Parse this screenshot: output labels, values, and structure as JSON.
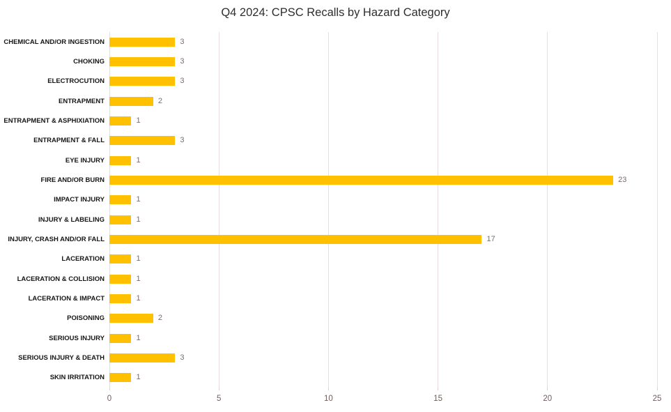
{
  "chart_data": {
    "type": "bar",
    "orientation": "horizontal",
    "title": "Q4 2024: CPSC Recalls by Hazard Category",
    "xlabel": "",
    "ylabel": "",
    "categories": [
      "CHEMICAL AND/OR INGESTION",
      "CHOKING",
      "ELECTROCUTION",
      "ENTRAPMENT",
      "ENTRAPMENT & ASPHIXIATION",
      "ENTRAPMENT & FALL",
      "EYE INJURY",
      "FIRE AND/OR BURN",
      "IMPACT INJURY",
      "INJURY & LABELING",
      "INJURY, CRASH AND/OR FALL",
      "LACERATION",
      "LACERATION & COLLISION",
      "LACERATION & IMPACT",
      "POISONING",
      "SERIOUS INJURY",
      "SERIOUS INJURY & DEATH",
      "SKIN IRRITATION"
    ],
    "values": [
      3,
      3,
      3,
      2,
      1,
      3,
      1,
      23,
      1,
      1,
      17,
      1,
      1,
      1,
      2,
      1,
      3,
      1
    ],
    "data_labels": [
      3,
      3,
      3,
      2,
      1,
      3,
      1,
      23,
      1,
      1,
      17,
      1,
      1,
      1,
      2,
      1,
      3,
      1
    ],
    "xlim": [
      0,
      25
    ],
    "x_ticks": [
      0,
      5,
      10,
      15,
      20,
      25
    ],
    "grid": "vertical-major",
    "legend": "none",
    "colors": {
      "bar_fill": "#FFC000",
      "gridline": "#EBDCDD",
      "tick_mark": "#E3CDCE",
      "value_label": "#7C6A6A",
      "axis_label": "#6E5C5C",
      "category_label": "#161616",
      "title": "#2E2E2E",
      "background": "#FFFFFF"
    }
  }
}
